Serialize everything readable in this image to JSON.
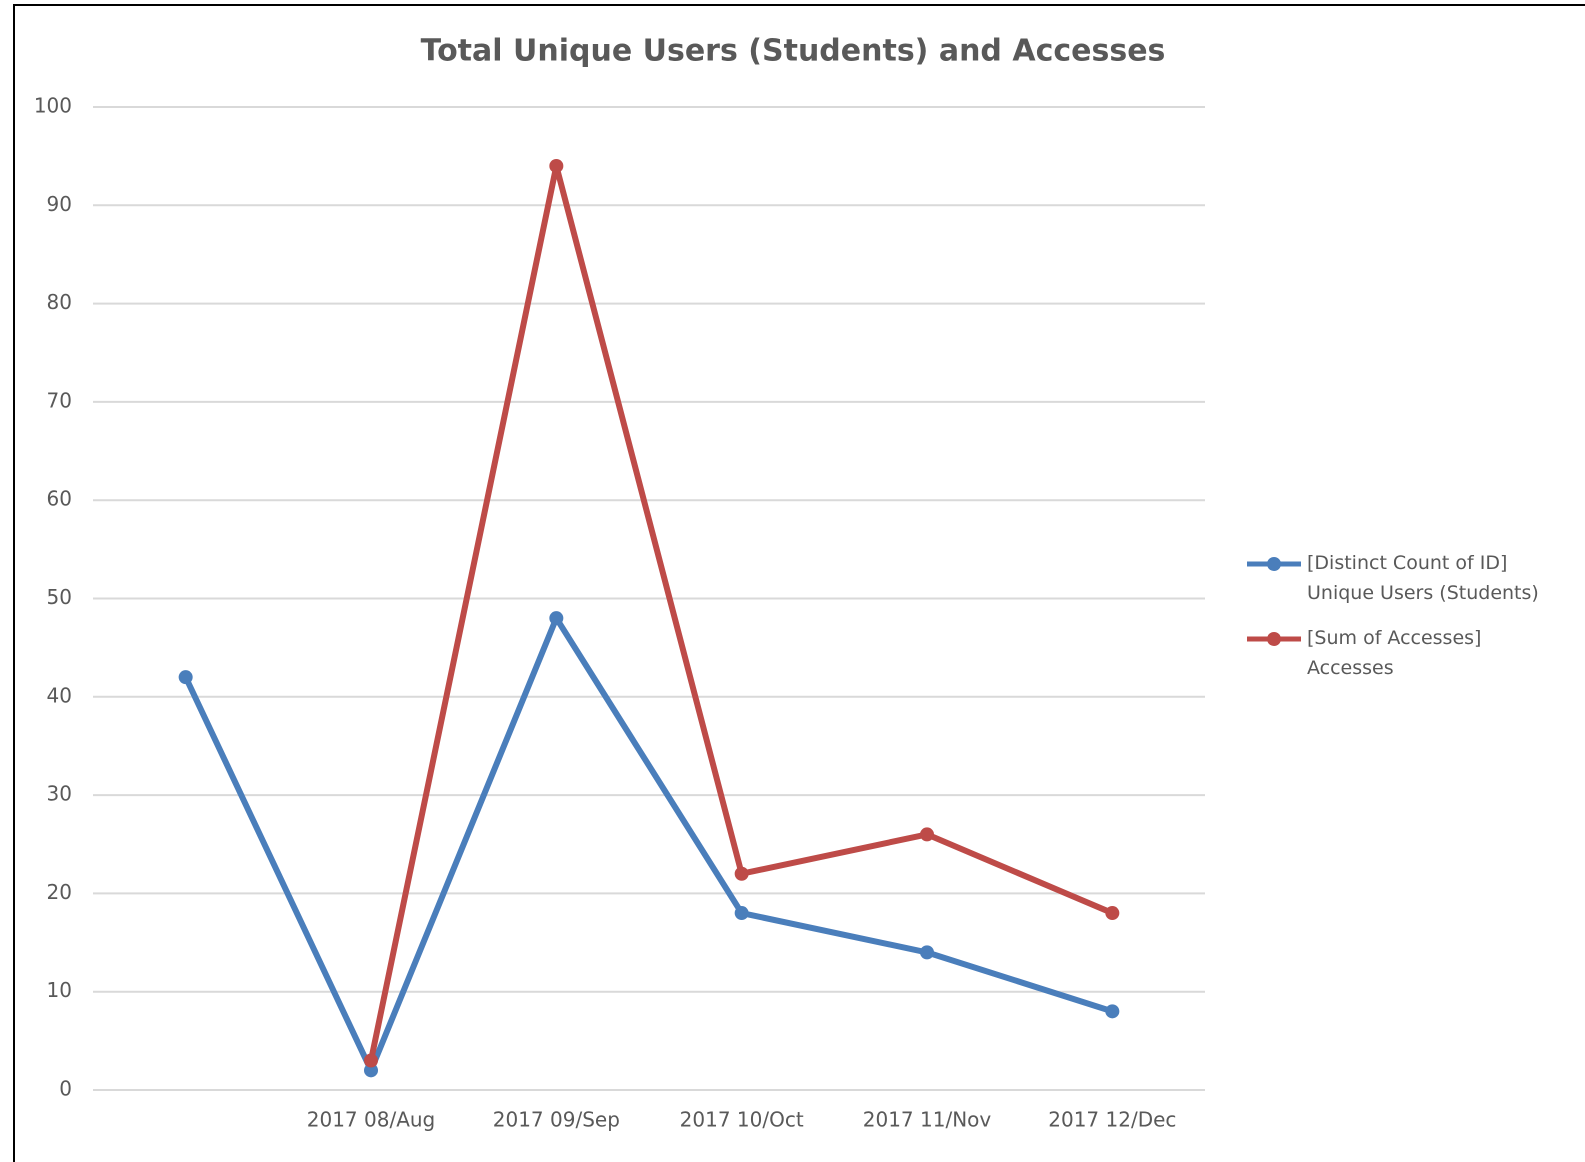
{
  "chart_data": {
    "type": "line",
    "title": "Total Unique Users (Students) and Accesses",
    "categories": [
      null,
      "2017 08/Aug",
      "2017 09/Sep",
      "2017 10/Oct",
      "2017 11/Nov",
      "2017 12/Dec"
    ],
    "series": [
      {
        "name": "[Distinct Count of ID] Unique Users (Students)",
        "color": "#4a7ebb",
        "values": [
          42,
          2,
          48,
          18,
          14,
          8
        ]
      },
      {
        "name": "[Sum of Accesses] Accesses",
        "color": "#be4b48",
        "values": [
          null,
          3,
          94,
          22,
          26,
          18
        ]
      }
    ],
    "ylim": [
      0,
      100
    ],
    "yticks": [
      0,
      10,
      20,
      30,
      40,
      50,
      60,
      70,
      80,
      90,
      100
    ],
    "grid": true,
    "legend": "right"
  }
}
